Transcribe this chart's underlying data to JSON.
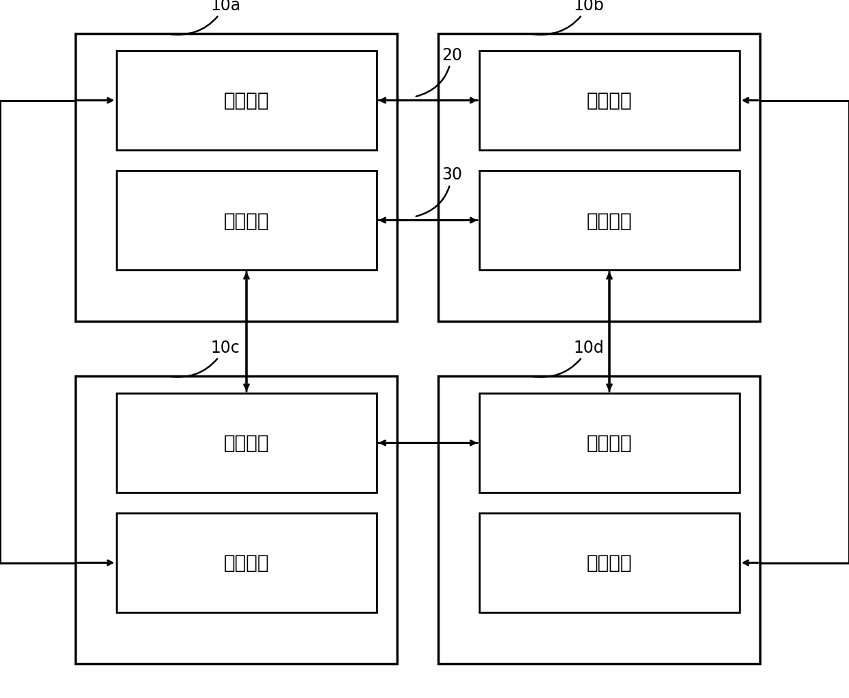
{
  "bg_color": "#ffffff",
  "line_color": "#000000",
  "text_color": "#000000",
  "font_size_label": 20,
  "font_size_ref": 17,
  "lw_outer": 2.5,
  "lw_inner": 2.0,
  "lw_arrow": 2.2,
  "label_first": "第一板卡",
  "label_second": "第二板卡",
  "ref_10a": "10a",
  "ref_10b": "10b",
  "ref_10c": "10c",
  "ref_10d": "10d",
  "ref_20": "20",
  "ref_30": "30"
}
